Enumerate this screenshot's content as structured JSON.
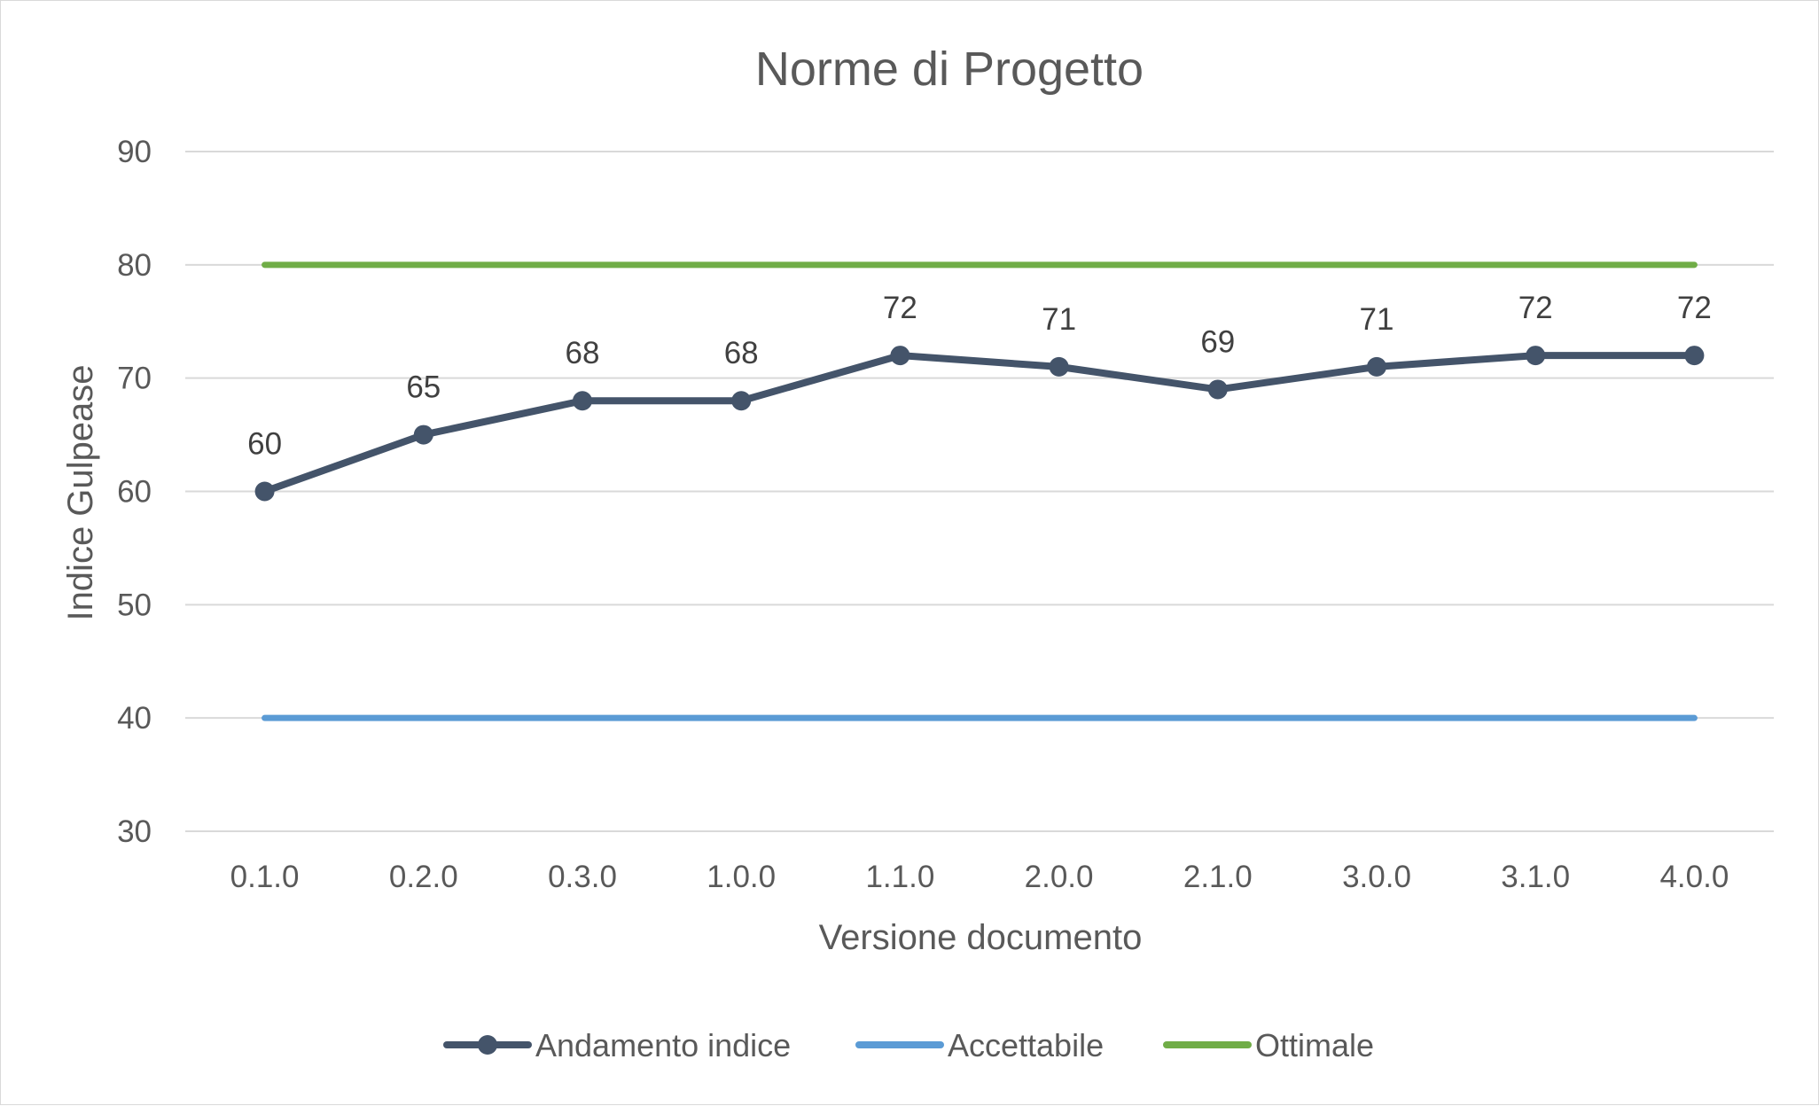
{
  "chart_data": {
    "type": "line",
    "title": "Norme di Progetto",
    "xlabel": "Versione documento",
    "ylabel": "Indice Gulpease",
    "categories": [
      "0.1.0",
      "0.2.0",
      "0.3.0",
      "1.0.0",
      "1.1.0",
      "2.0.0",
      "2.1.0",
      "3.0.0",
      "3.1.0",
      "4.0.0"
    ],
    "ylim": [
      30,
      90
    ],
    "yticks": [
      30,
      40,
      50,
      60,
      70,
      80,
      90
    ],
    "grid": true,
    "legend_position": "bottom",
    "series": [
      {
        "name": "Andamento indice",
        "values": [
          60,
          65,
          68,
          68,
          72,
          71,
          69,
          71,
          72,
          72
        ],
        "color": "#44546a",
        "markers": true,
        "data_labels": true
      },
      {
        "name": "Accettabile",
        "values": [
          40,
          40,
          40,
          40,
          40,
          40,
          40,
          40,
          40,
          40
        ],
        "color": "#5b9bd5",
        "markers": false,
        "data_labels": false
      },
      {
        "name": "Ottimale",
        "values": [
          80,
          80,
          80,
          80,
          80,
          80,
          80,
          80,
          80,
          80
        ],
        "color": "#70ad47",
        "markers": false,
        "data_labels": false
      }
    ]
  }
}
